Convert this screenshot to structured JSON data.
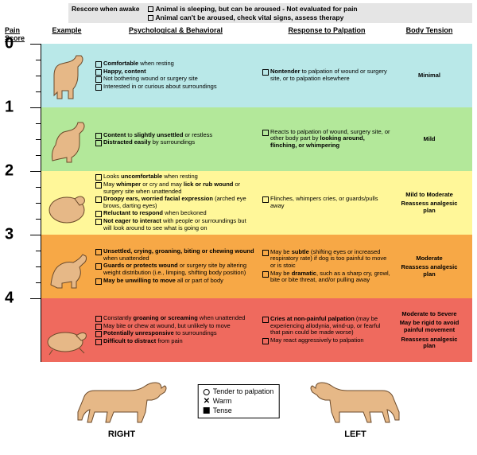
{
  "top": {
    "rescore": "Rescore when awake",
    "note1": "Animal is sleeping, but can be aroused - Not evaluated for pain",
    "note2": "Animal can't be aroused, check vital signs, assess therapy"
  },
  "headers": {
    "score": "Pain Score",
    "example": "Example",
    "psych": "Psychological & Behavioral",
    "palp": "Response to Palpation",
    "tension": "Body Tension"
  },
  "scale": {
    "labels": [
      "0",
      "1",
      "2",
      "3",
      "4"
    ]
  },
  "colors": {
    "r0": "#b9e8e8",
    "r1": "#b3e89a",
    "r2": "#fff799",
    "r3": "#f7a846",
    "r4": "#ef6a5e",
    "dog_fill": "#e6b887",
    "dog_stroke": "#6b4a2b"
  },
  "rows": [
    {
      "psych": [
        "<b>Comfortable</b> when resting",
        "<b>Happy, content</b>",
        "Not bothering wound or surgery site",
        "Interested in or curious about surroundings"
      ],
      "palp": [
        "<b>Nontender</b> to palpation of wound or surgery site, or to palpation elsewhere"
      ],
      "tension": "Minimal",
      "reassess": ""
    },
    {
      "psych": [
        "<b>Content</b> to <b>slightly unsettled</b> or restless",
        "<b>Distracted easily</b> by surroundings"
      ],
      "palp": [
        "Reacts to palpation of wound, surgery site, or other body part by <b>looking around, flinching, or whimpering</b>"
      ],
      "tension": "Mild",
      "reassess": ""
    },
    {
      "psych": [
        "Looks <b>uncomfortable</b> when resting",
        "May <b>whimper</b> or cry and may <b>lick or rub wound</b> or surgery site when unattended",
        "<b>Droopy ears, worried facial expression</b> (arched eye brows, darting eyes)",
        "<b>Reluctant to respond</b> when beckoned",
        "<b>Not eager to interact</b> with people or surroundings but will look around to see what is going on"
      ],
      "palp": [
        "Flinches, whimpers cries, or guards/pulls away"
      ],
      "tension": "Mild to Moderate",
      "reassess": "Reassess analgesic plan"
    },
    {
      "psych": [
        "<b>Unsettled, crying, groaning, biting or chewing wound</b> when unattended",
        "<b>Guards or protects wound</b> or surgery site by altering weight distribution (i.e., limping, shifting body position)",
        "<b>May be unwilling to move</b> all or part of body"
      ],
      "palp": [
        "May be <b>subtle</b> (shifting eyes or increased respiratory rate) if dog is too painful to move or is stoic",
        "May be <b>dramatic</b>, such as a sharp cry, growl, bite or bite threat, and/or pulling away"
      ],
      "tension": "Moderate",
      "reassess": "Reassess analgesic plan"
    },
    {
      "psych": [
        "Constantly <b>groaning or screaming</b> when unattended",
        "May bite or chew at wound, but unlikely to move",
        "<b>Potentially unresponsive</b> to surroundings",
        "<b>Difficult to distract</b> from pain"
      ],
      "palp": [
        "<b>Cries at non-painful palpation</b> (may be experiencing allodynia, wind-up, or fearful that pain could be made worse)",
        "May react aggressively to palpation"
      ],
      "tension": "Moderate to Severe",
      "extra": "May be rigid to avoid painful movement",
      "reassess": "Reassess analgesic plan"
    }
  ],
  "legend": {
    "circle": "Tender to palpation",
    "x": "Warm",
    "square": "Tense"
  },
  "bottom": {
    "right": "RIGHT",
    "left": "LEFT"
  }
}
